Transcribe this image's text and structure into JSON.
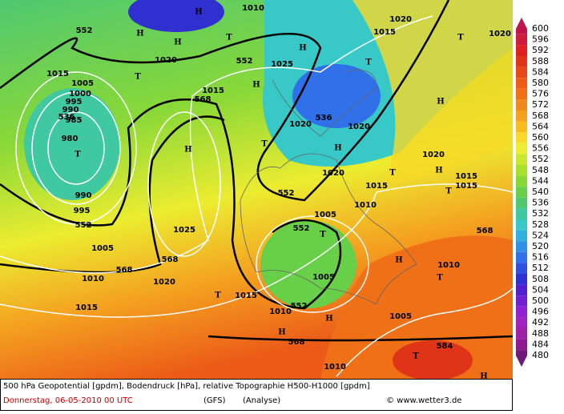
{
  "map_labels": [
    "552",
    "552",
    "536",
    "552",
    "552",
    "552",
    "552",
    "568",
    "568",
    "568",
    "568",
    "568",
    "584",
    "536",
    "1010",
    "1015",
    "1020",
    "1020",
    "1025",
    "1020",
    "1015",
    "1005",
    "1000",
    "995",
    "990",
    "985",
    "980",
    "990",
    "995",
    "1025",
    "1020",
    "1010",
    "1015",
    "1005",
    "1015",
    "1020",
    "1020",
    "1020",
    "1015",
    "1010",
    "1005",
    "1005",
    "1010",
    "1015",
    "1010",
    "1005",
    "1015",
    "1015",
    "1010",
    "1020",
    "H",
    "H",
    "H",
    "H",
    "H",
    "H",
    "H",
    "H",
    "H",
    "H",
    "H",
    "H",
    "H",
    "T",
    "T",
    "T",
    "T",
    "T",
    "T",
    "T",
    "T",
    "T",
    "T",
    "T",
    "T"
  ],
  "colorbar": {
    "levels": [
      600,
      596,
      592,
      588,
      584,
      580,
      576,
      572,
      568,
      564,
      560,
      556,
      552,
      548,
      544,
      540,
      536,
      532,
      528,
      524,
      520,
      516,
      512,
      508,
      504,
      500,
      496,
      492,
      488,
      484,
      480
    ],
    "colors": [
      "#c0144a",
      "#d01c3c",
      "#e02020",
      "#e03418",
      "#e84818",
      "#ec5c18",
      "#f07018",
      "#f08820",
      "#f4a020",
      "#f8bc20",
      "#f8d828",
      "#ecec30",
      "#c8e830",
      "#a8e030",
      "#88d838",
      "#68d048",
      "#50c870",
      "#40c8a0",
      "#38c8c8",
      "#30b0e0",
      "#3090e8",
      "#3070e8",
      "#3050e0",
      "#3030d0",
      "#5020d0",
      "#7020d0",
      "#9020d0",
      "#a020c0",
      "#a020a8",
      "#901890",
      "#701878"
    ]
  },
  "footer": {
    "line1": "500 hPa Geopotential [gpdm], Bodendruck [hPa], relative Topographie H500-H1000 [gpdm]",
    "date": "Donnerstag, 06-05-2010  00 UTC",
    "model": "(GFS)",
    "run": "(Analyse)",
    "credit": "© www.wetter3.de"
  }
}
